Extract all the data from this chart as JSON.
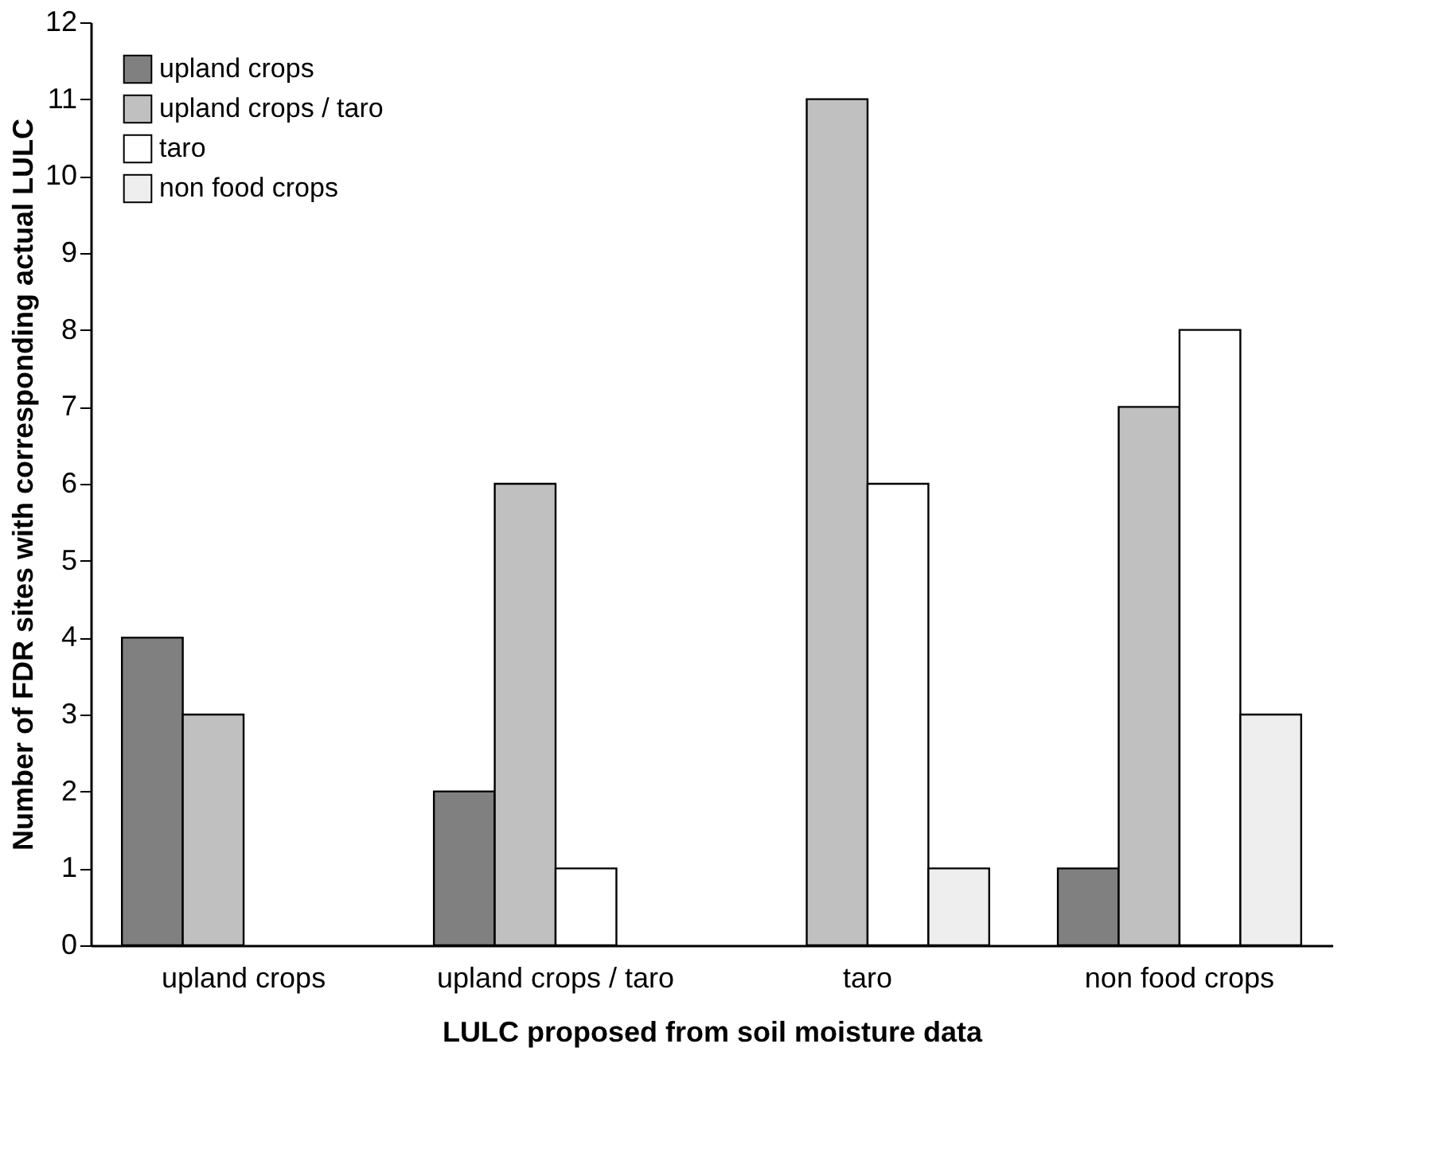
{
  "chart_data": {
    "type": "bar",
    "xlabel": "LULC proposed from soil moisture data",
    "ylabel": "Number of FDR sites with corresponding actual LULC",
    "categories": [
      "upland crops",
      "upland crops / taro",
      "taro",
      "non food crops"
    ],
    "series": [
      {
        "name": "upland crops",
        "color": "#808080",
        "values": [
          4,
          2,
          null,
          1
        ]
      },
      {
        "name": "upland crops / taro",
        "color": "#c0c0c0",
        "values": [
          3,
          6,
          11,
          7
        ]
      },
      {
        "name": "taro",
        "color": "#ffffff",
        "values": [
          null,
          1,
          6,
          8
        ]
      },
      {
        "name": "non food crops",
        "color": "#eeeeee",
        "values": [
          null,
          null,
          1,
          3
        ]
      }
    ],
    "ylim": [
      0,
      12
    ],
    "yticks": [
      0,
      1,
      2,
      3,
      4,
      5,
      6,
      7,
      8,
      9,
      10,
      11,
      12
    ],
    "grid": false,
    "legend": "top left"
  }
}
